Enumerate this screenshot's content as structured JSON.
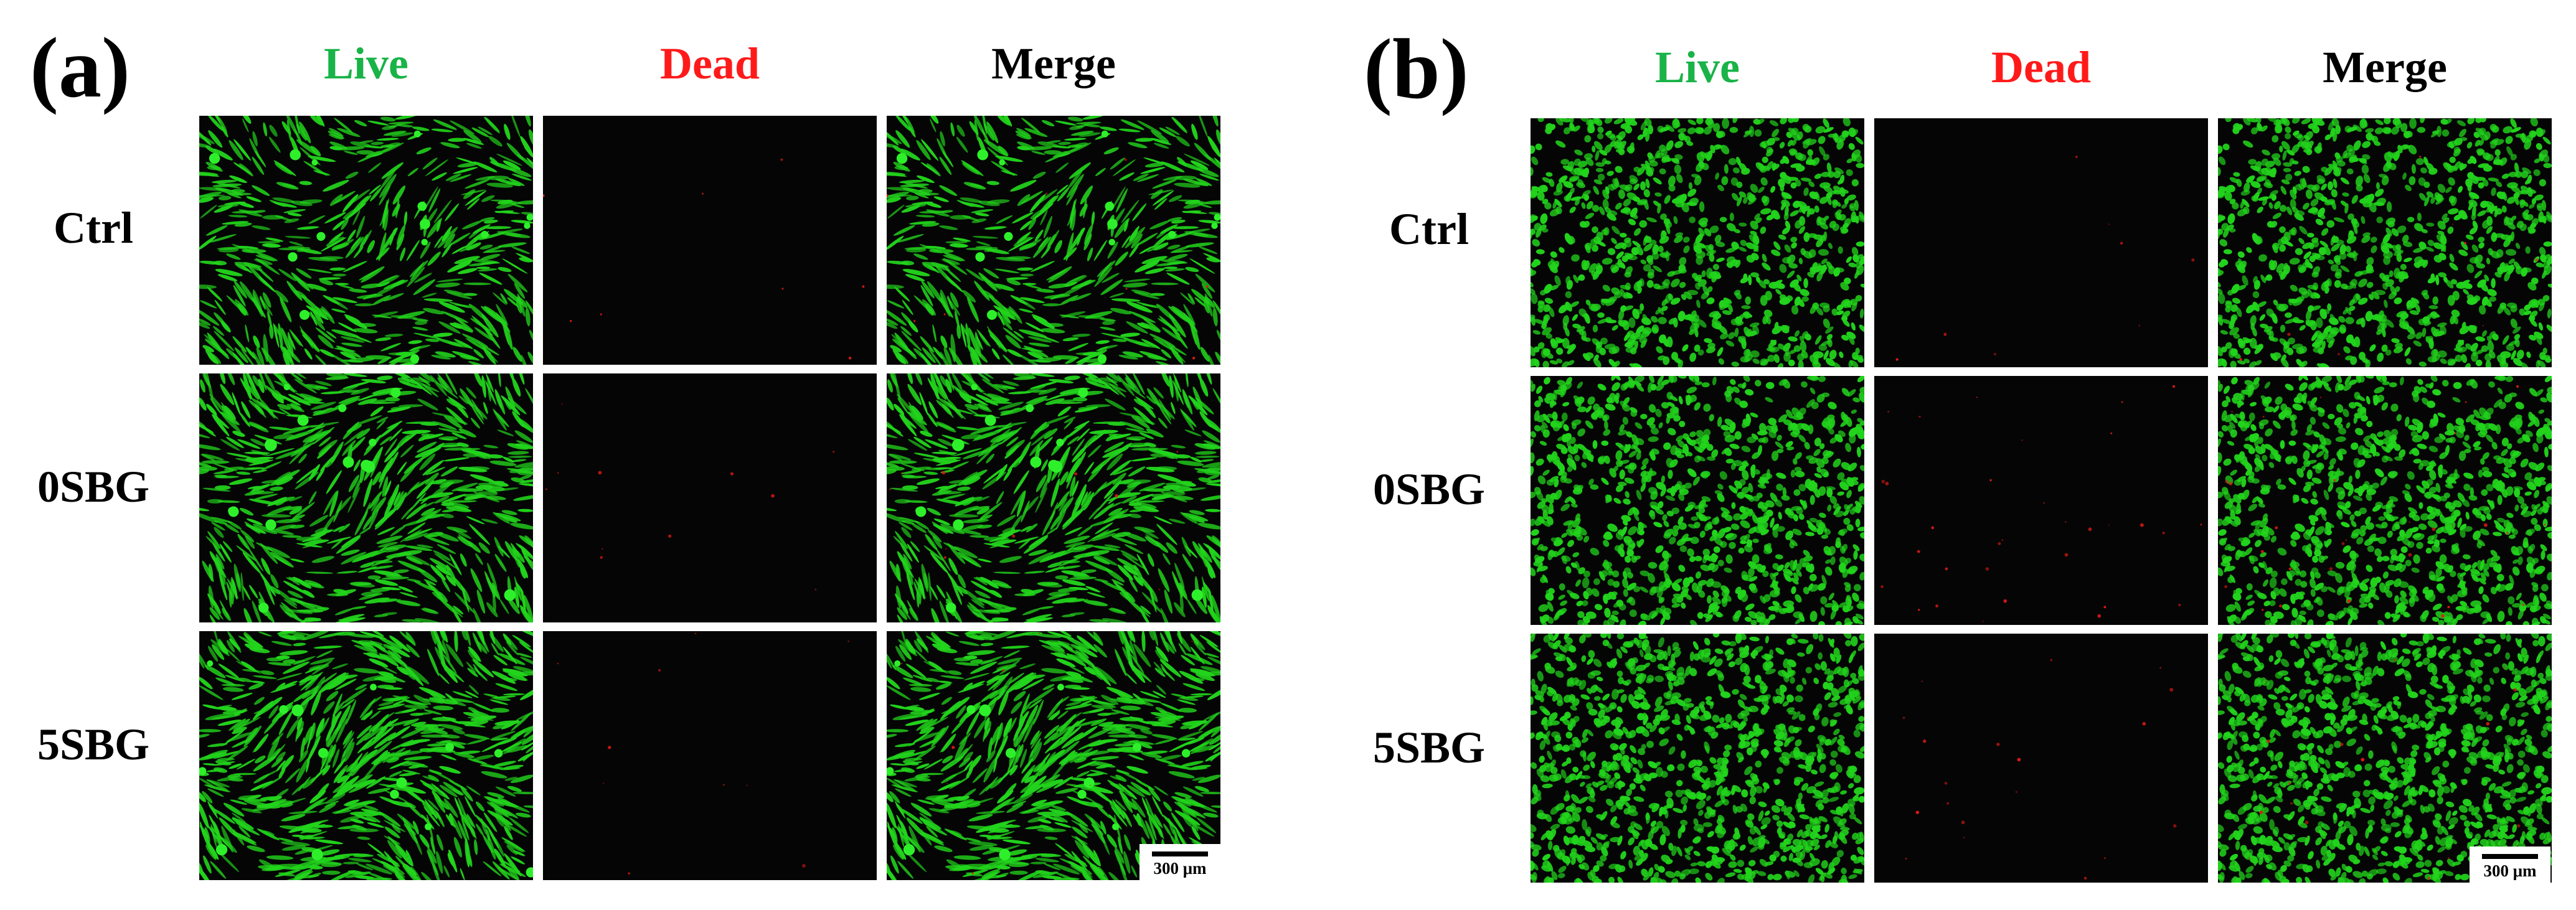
{
  "colors": {
    "live": "#19b347",
    "dead": "#ff1a1a",
    "merge": "#000000",
    "cell_green": "#22d41c",
    "cell_red": "#e01a12",
    "background": "#050505"
  },
  "columns": [
    {
      "key": "live",
      "label": "Live"
    },
    {
      "key": "dead",
      "label": "Dead"
    },
    {
      "key": "merge",
      "label": "Merge"
    }
  ],
  "panels": [
    {
      "id": "a",
      "letter": "(a)",
      "morphology": "elongated",
      "rows": [
        {
          "label": "Ctrl",
          "green_density": 0.6,
          "red_density": 0.05
        },
        {
          "label": "0SBG",
          "green_density": 0.75,
          "red_density": 0.07
        },
        {
          "label": "5SBG",
          "green_density": 0.85,
          "red_density": 0.06
        }
      ],
      "scale_bar": "300 μm"
    },
    {
      "id": "b",
      "letter": "(b)",
      "morphology": "round",
      "rows": [
        {
          "label": "Ctrl",
          "green_density": 0.7,
          "red_density": 0.05
        },
        {
          "label": "0SBG",
          "green_density": 0.7,
          "red_density": 0.2
        },
        {
          "label": "5SBG",
          "green_density": 0.75,
          "red_density": 0.12
        }
      ],
      "scale_bar": "300 μm"
    }
  ]
}
